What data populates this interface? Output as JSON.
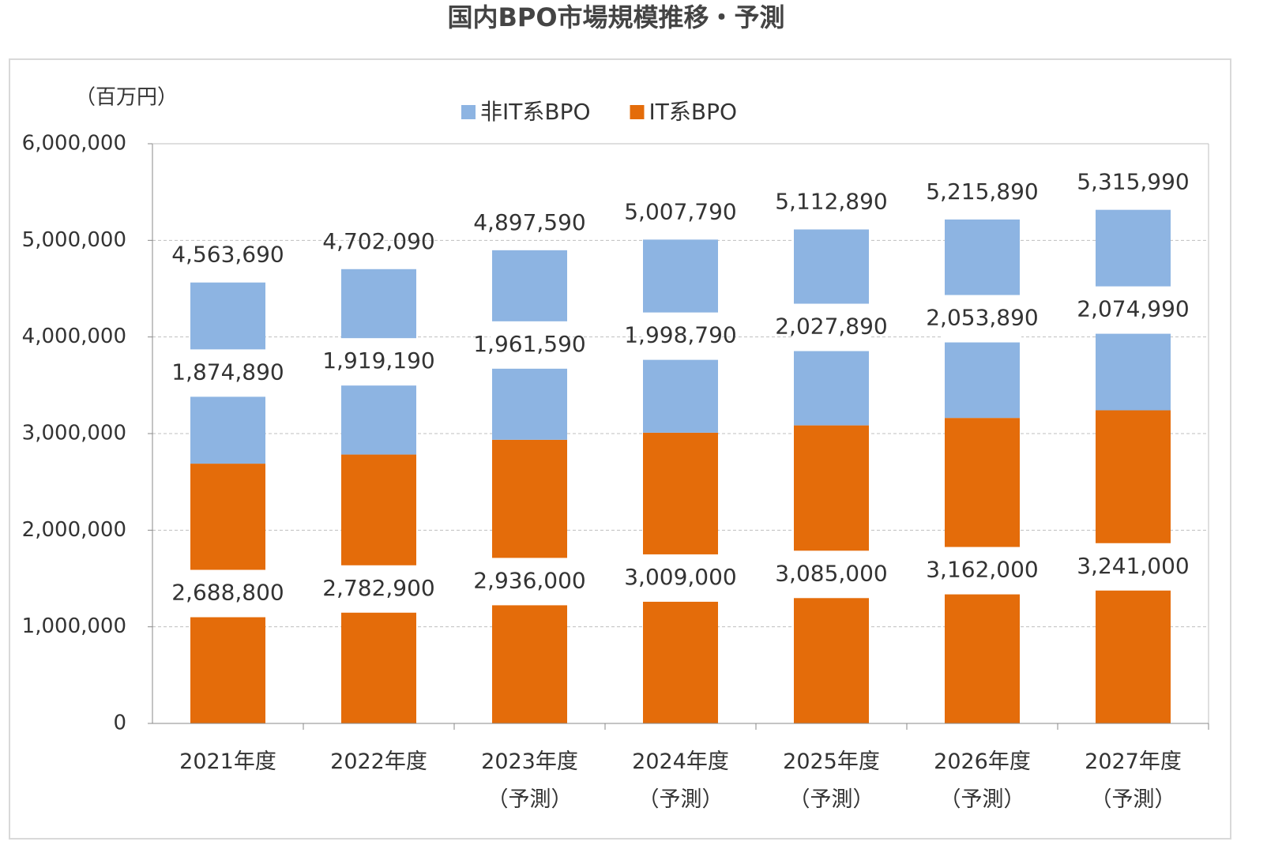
{
  "chart_data": {
    "type": "stacked_bar",
    "title": "国内BPO市場規模推移・予測",
    "y_label": "（百万円）",
    "categories": [
      "2021年度",
      "2022年度",
      "2023年度\n（予測）",
      "2024年度\n（予測）",
      "2025年度\n（予測）",
      "2026年度\n（予測）",
      "2027年度\n（予測）"
    ],
    "series": [
      {
        "name": "IT系BPO",
        "color": "#e46c0a",
        "values": [
          2688800,
          2782900,
          2936000,
          3009000,
          3085000,
          3162000,
          3241000
        ],
        "value_labels": [
          "2,688,800",
          "2,782,900",
          "2,936,000",
          "3,009,000",
          "3,085,000",
          "3,162,000",
          "3,241,000"
        ]
      },
      {
        "name": "非IT系BPO",
        "color": "#8db4e2",
        "values": [
          1874890,
          1919190,
          1961590,
          1998790,
          2027890,
          2053890,
          2074990
        ],
        "value_labels": [
          "1,874,890",
          "1,919,190",
          "1,961,590",
          "1,998,790",
          "2,027,890",
          "2,053,890",
          "2,074,990"
        ]
      }
    ],
    "totals": [
      4563690,
      4702090,
      4897590,
      5007790,
      5112890,
      5215890,
      5315990
    ],
    "total_labels": [
      "4,563,690",
      "4,702,090",
      "4,897,590",
      "5,007,790",
      "5,112,890",
      "5,215,890",
      "5,315,990"
    ],
    "legend_order": [
      1,
      0
    ],
    "ylim": [
      0,
      6000000
    ],
    "yticks": [
      0,
      {
        "value": 1000000,
        "label": "1,000,000"
      },
      {
        "value": 2000000,
        "label": "2,000,000"
      },
      {
        "value": 3000000,
        "label": "3,000,000"
      },
      {
        "value": 4000000,
        "label": "4,000,000"
      },
      {
        "value": 5000000,
        "label": "5,000,000"
      },
      {
        "value": 6000000,
        "label": "6,000,000"
      }
    ],
    "grid": true
  }
}
